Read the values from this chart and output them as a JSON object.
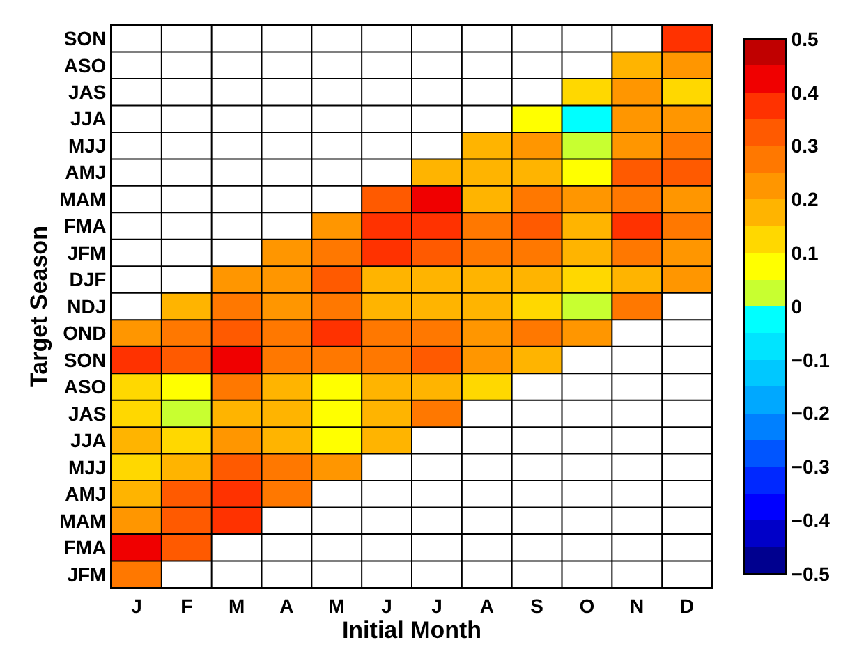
{
  "chart_data": {
    "type": "heatmap",
    "xlabel": "Initial Month",
    "ylabel": "Target Season",
    "categories": [
      "J",
      "F",
      "M",
      "A",
      "M",
      "J",
      "J",
      "A",
      "S",
      "O",
      "N",
      "D"
    ],
    "y_categories": [
      "SON",
      "ASO",
      "JAS",
      "JJA",
      "MJJ",
      "AMJ",
      "MAM",
      "FMA",
      "JFM",
      "DJF",
      "NDJ",
      "OND",
      "SON",
      "ASO",
      "JAS",
      "JJA",
      "MJJ",
      "AMJ",
      "MAM",
      "FMA",
      "JFM"
    ],
    "cells": [
      [
        null,
        null,
        null,
        null,
        null,
        null,
        null,
        null,
        null,
        null,
        null,
        0.375
      ],
      [
        null,
        null,
        null,
        null,
        null,
        null,
        null,
        null,
        null,
        null,
        0.175,
        0.225
      ],
      [
        null,
        null,
        null,
        null,
        null,
        null,
        null,
        null,
        null,
        0.125,
        0.225,
        0.125
      ],
      [
        null,
        null,
        null,
        null,
        null,
        null,
        null,
        null,
        0.075,
        -0.025,
        0.225,
        0.225
      ],
      [
        null,
        null,
        null,
        null,
        null,
        null,
        null,
        0.175,
        0.225,
        0.025,
        0.225,
        0.275
      ],
      [
        null,
        null,
        null,
        null,
        null,
        null,
        0.175,
        0.175,
        0.175,
        0.075,
        0.325,
        0.325
      ],
      [
        null,
        null,
        null,
        null,
        null,
        0.325,
        0.425,
        0.175,
        0.275,
        0.225,
        0.275,
        0.225
      ],
      [
        null,
        null,
        null,
        null,
        0.225,
        0.375,
        0.375,
        0.275,
        0.325,
        0.175,
        0.375,
        0.275
      ],
      [
        null,
        null,
        null,
        0.225,
        0.275,
        0.375,
        0.325,
        0.275,
        0.275,
        0.175,
        0.275,
        0.225
      ],
      [
        null,
        null,
        0.225,
        0.225,
        0.325,
        0.175,
        0.175,
        0.175,
        0.175,
        0.125,
        0.175,
        0.225
      ],
      [
        null,
        0.175,
        0.275,
        0.225,
        0.275,
        0.175,
        0.175,
        0.175,
        0.125,
        0.025,
        0.275,
        null
      ],
      [
        0.225,
        0.275,
        0.325,
        0.275,
        0.375,
        0.275,
        0.275,
        0.225,
        0.275,
        0.225,
        null,
        null
      ],
      [
        0.375,
        0.325,
        0.425,
        0.275,
        0.275,
        0.275,
        0.325,
        0.225,
        0.175,
        null,
        null,
        null
      ],
      [
        0.125,
        0.075,
        0.275,
        0.175,
        0.075,
        0.175,
        0.175,
        0.125,
        null,
        null,
        null,
        null
      ],
      [
        0.125,
        0.025,
        0.175,
        0.175,
        0.075,
        0.175,
        0.275,
        null,
        null,
        null,
        null,
        null
      ],
      [
        0.175,
        0.125,
        0.225,
        0.175,
        0.075,
        0.175,
        null,
        null,
        null,
        null,
        null,
        null
      ],
      [
        0.125,
        0.175,
        0.325,
        0.275,
        0.225,
        null,
        null,
        null,
        null,
        null,
        null,
        null
      ],
      [
        0.175,
        0.325,
        0.375,
        0.275,
        null,
        null,
        null,
        null,
        null,
        null,
        null,
        null
      ],
      [
        0.225,
        0.325,
        0.375,
        null,
        null,
        null,
        null,
        null,
        null,
        null,
        null,
        null
      ],
      [
        0.425,
        0.325,
        null,
        null,
        null,
        null,
        null,
        null,
        null,
        null,
        null,
        null
      ],
      [
        0.275,
        null,
        null,
        null,
        null,
        null,
        null,
        null,
        null,
        null,
        null,
        null
      ]
    ],
    "clim": [
      -0.5,
      0.5
    ],
    "cticks": [
      -0.5,
      -0.4,
      -0.3,
      -0.2,
      -0.1,
      0,
      0.1,
      0.2,
      0.3,
      0.4,
      0.5
    ],
    "grid": true
  }
}
